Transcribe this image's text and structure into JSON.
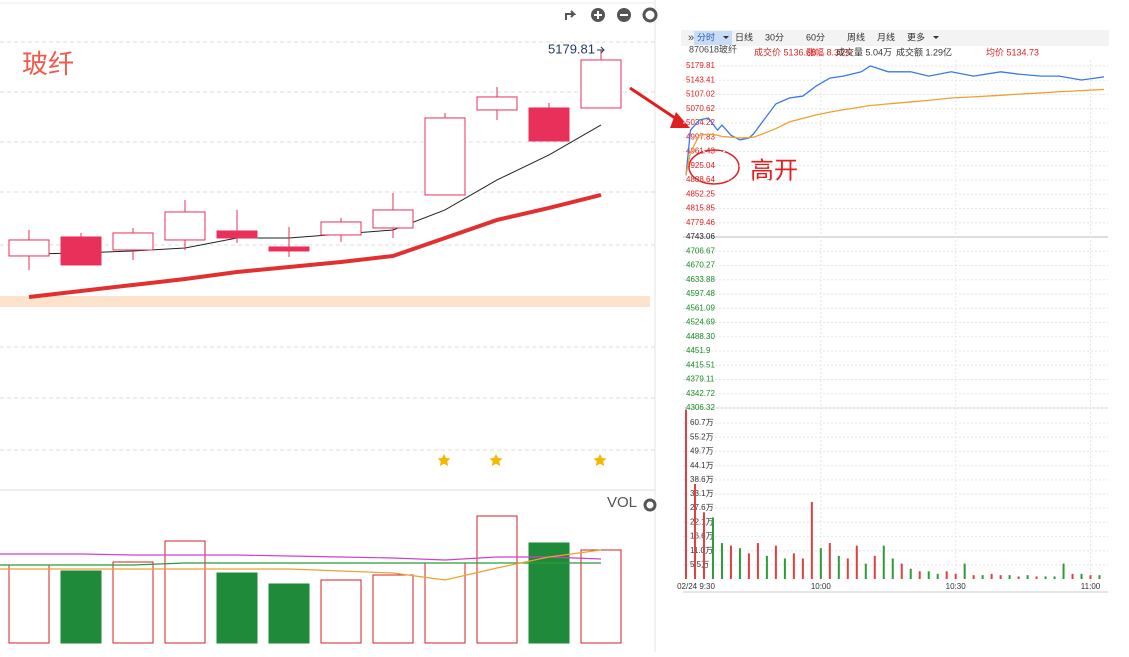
{
  "toolbar": {
    "tabs": [
      "分时",
      "日线",
      "30分",
      "60分",
      "周线",
      "月线",
      "更多"
    ]
  },
  "quote": {
    "code": "870618玻纤",
    "items": [
      "成交价 5136.68",
      "涨幅 8.30%",
      "成交量 5.04万",
      "成交额 1.29亿",
      "均价 5134.73"
    ]
  },
  "chart_data": [
    {
      "type": "candlestick",
      "title": "玻纤",
      "ylim": [
        2539.81,
        5479.81
      ],
      "open": [
        3944,
        4058,
        3980,
        4040,
        4094,
        3998,
        4070,
        4112,
        4310,
        4820,
        4832,
        4832
      ],
      "close": [
        4040,
        3890,
        4082,
        4208,
        4052,
        3974,
        4148,
        4220,
        4772,
        4898,
        4634,
        5120
      ],
      "high": [
        4100,
        4082,
        4112,
        4280,
        4220,
        4118,
        4172,
        4322,
        4802,
        4958,
        4862,
        5179.81
      ],
      "low": [
        3860,
        3890,
        3920,
        3980,
        4022,
        3938,
        4028,
        4052,
        4310,
        4760,
        4634,
        4832
      ],
      "high_label": "5179.81",
      "color": "#e8305a",
      "lines": [
        {
          "color": "#222222",
          "values": [
            3956,
            3962,
            3974,
            3992,
            4052,
            4052,
            4076,
            4100,
            4220,
            4400,
            4550,
            4730
          ]
        },
        {
          "color": "#e03030",
          "values": [
            3698,
            3734,
            3770,
            3806,
            3848,
            3878,
            3908,
            3944,
            4052,
            4160,
            4232,
            4310
          ]
        }
      ]
    },
    {
      "type": "bar",
      "title": "VOL",
      "ylim": [
        0,
        155
      ],
      "values": [
        78,
        72,
        81,
        102,
        70,
        59,
        63,
        68,
        80,
        127,
        100,
        93
      ],
      "up_color": "#d42020",
      "down_color": "#1e8a3a",
      "lines": [
        {
          "color": "#d040d0",
          "values": [
            89,
            89,
            88,
            88,
            88,
            87,
            86,
            85,
            83,
            86,
            86,
            84
          ]
        },
        {
          "color": "#2a9d3a",
          "values": [
            78,
            78,
            78,
            80,
            80,
            80,
            80,
            80,
            80,
            80,
            80,
            80
          ]
        },
        {
          "color": "#f0a030",
          "values": [
            74,
            74,
            74,
            74,
            74,
            74,
            72,
            70,
            63,
            75,
            86,
            93
          ]
        }
      ]
    },
    {
      "type": "line",
      "annotation": "高开",
      "x": [
        0,
        1,
        3,
        5,
        7,
        8,
        10,
        12,
        14,
        15,
        17,
        20,
        23,
        26,
        29,
        32,
        35,
        39,
        41,
        45,
        50,
        54,
        59,
        64,
        70,
        74,
        79,
        83,
        88,
        93
      ],
      "series": [
        {
          "color": "#3b78e7",
          "values": [
            4901,
            5016,
            5042,
            5047,
            5016,
            5029,
            5003,
            4991,
            4996,
            5006,
            5037,
            5083,
            5098,
            5103,
            5129,
            5149,
            5154,
            5165,
            5180,
            5165,
            5165,
            5154,
            5165,
            5154,
            5165,
            5159,
            5154,
            5154,
            5144,
            5152
          ]
        },
        {
          "color": "#f0a030",
          "values": [
            4901,
            4960,
            5003,
            5006,
            5003,
            5000,
            4998,
            4996,
            4997,
            4998,
            5006,
            5020,
            5037,
            5046,
            5055,
            5062,
            5068,
            5075,
            5079,
            5083,
            5088,
            5092,
            5098,
            5101,
            5105,
            5108,
            5111,
            5114,
            5117,
            5120
          ]
        }
      ],
      "xlim": [
        0,
        93
      ],
      "xticks": [
        {
          "value": 0,
          "label": "02/24 9:30"
        },
        {
          "value": 30,
          "label": "10:00"
        },
        {
          "value": 60,
          "label": "10:30"
        },
        {
          "value": 90,
          "label": "11:00"
        }
      ],
      "ylim": [
        4306.32,
        5179.81
      ],
      "yticks": [
        5179.81,
        5143.41,
        5107.02,
        5070.62,
        5034.22,
        4997.83,
        4961.43,
        4925.04,
        4888.64,
        4852.25,
        4815.85,
        4779.46,
        4743.06,
        4706.67,
        4670.27,
        4633.88,
        4597.48,
        4561.09,
        4524.69,
        {
          "value": 4488.3,
          "label": "4488.30"
        },
        4451.9,
        4415.51,
        4379.11,
        4342.72,
        4306.32
      ],
      "up_color": "#e02020",
      "flat_color": "#222222",
      "down_color": "#1a8a2a"
    },
    {
      "type": "bar",
      "xlim": [
        0,
        93
      ],
      "x": [
        0,
        2,
        4,
        6,
        8,
        10,
        12,
        14,
        16,
        18,
        20,
        22,
        24,
        26,
        28,
        30,
        32,
        34,
        36,
        38,
        40,
        42,
        44,
        46,
        48,
        50,
        52,
        54,
        56,
        58,
        60,
        62,
        64,
        66,
        68,
        70,
        72,
        74,
        76,
        78,
        80,
        82,
        84,
        86,
        88,
        90,
        92
      ],
      "values": [
        66,
        37,
        26,
        24,
        14,
        13,
        12,
        10,
        14,
        9,
        13,
        8,
        10,
        8,
        30,
        12,
        14,
        9,
        8,
        13,
        6,
        9,
        13,
        8,
        6,
        4,
        3,
        3,
        2,
        3,
        2,
        6,
        1.5,
        1.5,
        2,
        1.5,
        1.5,
        1,
        1.5,
        1,
        1,
        1,
        6,
        2,
        2,
        1.5,
        1.5
      ],
      "colors": [
        "#e04040",
        "#e04040",
        "#e04040",
        "#2a9d3a",
        "#2a9d3a",
        "#e04040",
        "#2a9d3a",
        "#e04040",
        "#e04040",
        "#2a9d3a",
        "#e04040",
        "#2a9d3a",
        "#e04040",
        "#e04040",
        "#e04040",
        "#2a9d3a",
        "#e04040",
        "#2a9d3a",
        "#e04040",
        "#e04040",
        "#2a9d3a",
        "#e04040",
        "#2a9d3a",
        "#2a9d3a",
        "#e04040",
        "#2a9d3a",
        "#e04040",
        "#2a9d3a",
        "#2a9d3a",
        "#e04040",
        "#e04040",
        "#2a9d3a",
        "#e04040",
        "#2a9d3a",
        "#e04040",
        "#e04040",
        "#2a9d3a",
        "#e04040",
        "#2a9d3a",
        "#e04040",
        "#2a9d3a",
        "#2a9d3a",
        "#2a9d3a",
        "#e04040",
        "#2a9d3a",
        "#e04040",
        "#2a9d3a"
      ],
      "ylim": [
        0,
        66.2
      ],
      "yticks": [
        {
          "value": 60.7,
          "label": "60.7万"
        },
        {
          "value": 55.2,
          "label": "55.2万"
        },
        {
          "value": 49.7,
          "label": "49.7万"
        },
        {
          "value": 44.1,
          "label": "44.1万"
        },
        {
          "value": 38.6,
          "label": "38.6万"
        },
        {
          "value": 33.1,
          "label": "33.1万"
        },
        {
          "value": 27.6,
          "label": "27.6万"
        },
        {
          "value": 22.1,
          "label": "22.1万"
        },
        {
          "value": 16.6,
          "label": "16.6万"
        },
        {
          "value": 11.0,
          "label": "11.0万"
        },
        {
          "value": 5.5,
          "label": "5.5万"
        }
      ]
    }
  ]
}
